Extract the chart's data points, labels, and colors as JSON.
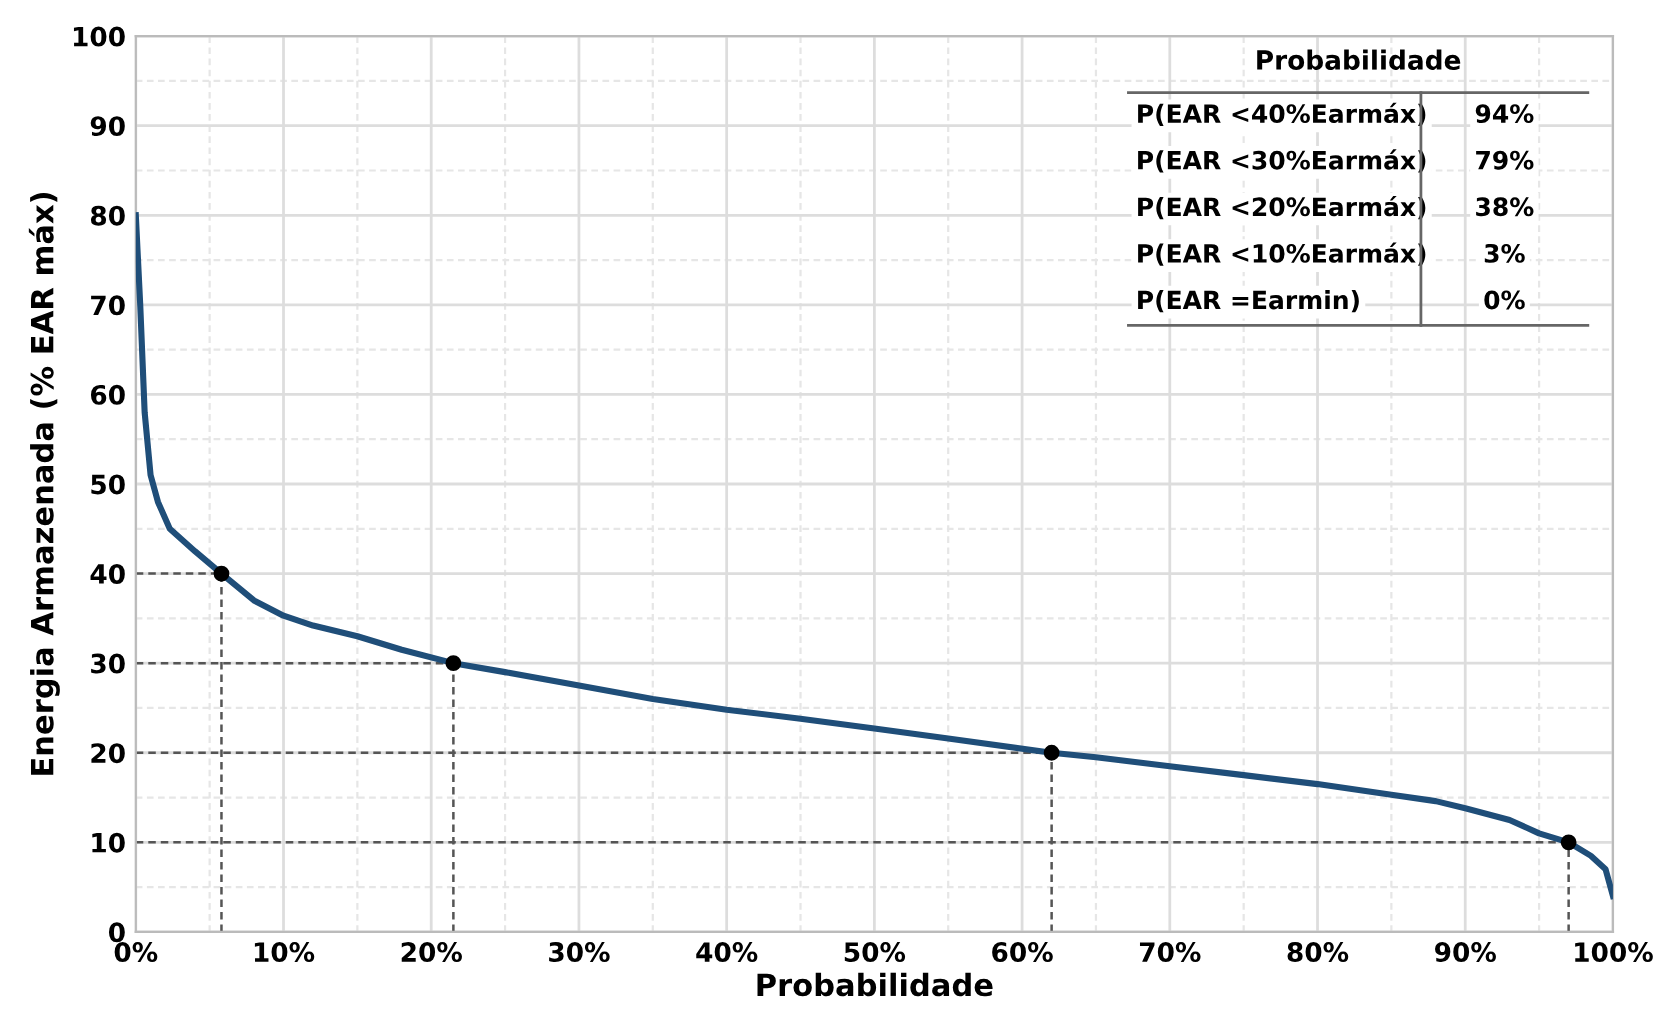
{
  "chart_data": {
    "type": "line",
    "xlabel": "Probabilidade",
    "ylabel": "Energia Armazenada (% EAR máx)",
    "xlim": [
      0,
      100
    ],
    "ylim": [
      0,
      100
    ],
    "xticks": [
      {
        "value": 0,
        "label": "0%"
      },
      {
        "value": 10,
        "label": "10%"
      },
      {
        "value": 20,
        "label": "20%"
      },
      {
        "value": 30,
        "label": "30%"
      },
      {
        "value": 40,
        "label": "40%"
      },
      {
        "value": 50,
        "label": "50%"
      },
      {
        "value": 60,
        "label": "60%"
      },
      {
        "value": 70,
        "label": "70%"
      },
      {
        "value": 80,
        "label": "80%"
      },
      {
        "value": 90,
        "label": "90%"
      },
      {
        "value": 100,
        "label": "100%"
      }
    ],
    "yticks": [
      0,
      10,
      20,
      30,
      40,
      50,
      60,
      70,
      80,
      90,
      100
    ],
    "grid": true,
    "legend": false,
    "series": [
      {
        "color": "#1f4e79",
        "x": [
          0,
          0.3,
          0.6,
          1,
          1.5,
          2.3,
          4,
          5.8,
          8,
          10,
          12,
          15,
          18,
          21.5,
          25,
          30,
          35,
          40,
          45,
          50,
          55,
          62,
          65,
          70,
          75,
          80,
          85,
          88,
          90,
          93,
          95,
          97,
          98.5,
          99.5,
          100
        ],
        "values": [
          80,
          70,
          58,
          51,
          48,
          45,
          42.5,
          40,
          37,
          35.3,
          34.2,
          33,
          31.5,
          30,
          29,
          27.5,
          26,
          24.8,
          23.8,
          22.7,
          21.6,
          20,
          19.5,
          18.5,
          17.5,
          16.5,
          15.3,
          14.6,
          13.8,
          12.5,
          11,
          10,
          8.5,
          7,
          4
        ]
      },
      {
        "type": "scatter",
        "color": "#000000",
        "x": [
          5.8,
          21.5,
          62,
          97
        ],
        "values": [
          40,
          30,
          20,
          10
        ],
        "xerrors": [
          [
            0,
            5.8
          ],
          [
            0,
            21.5
          ],
          [
            0,
            62
          ],
          [
            0,
            97
          ]
        ],
        "errors": [
          [
            0,
            40
          ],
          [
            0,
            30
          ],
          [
            0,
            20
          ],
          [
            0,
            10
          ]
        ]
      }
    ],
    "annotations": [
      "Probabilidade",
      "P(EAR <40%Earmáx)",
      "94%",
      "P(EAR <30%Earmáx)",
      "79%",
      "P(EAR <20%Earmáx)",
      "38%",
      "P(EAR <10%Earmáx)",
      "3%",
      "P(EAR =Earmin)",
      "0%"
    ]
  }
}
